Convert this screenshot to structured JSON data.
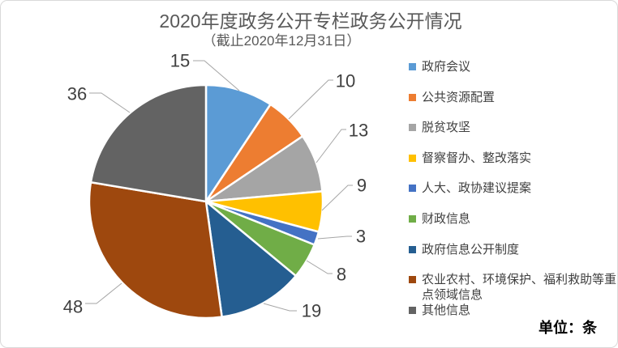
{
  "title": "2020年度政务公开专栏政务公开情况",
  "subtitle": "（截止2020年12月31日）",
  "unit_label": "单位：条",
  "colors": {
    "title_text": "#595959",
    "value_label_text": "#404040",
    "legend_text": "#404040",
    "leader_line": "#A6A6A6",
    "frame_border": "#D9D9D9",
    "background": "#FFFFFF"
  },
  "chart_data": {
    "type": "pie",
    "title": "2020年度政务公开专栏政务公开情况",
    "subtitle": "（截止2020年12月31日）",
    "unit": "条",
    "total": 161,
    "start_angle_deg": 0,
    "direction": "clockwise",
    "legend_position": "right",
    "slice_gap": "white 2.5px borders between slices",
    "slices": [
      {
        "label": "政府会议",
        "value": 15,
        "color": "#5B9BD5"
      },
      {
        "label": "公共资源配置",
        "value": 10,
        "color": "#ED7D31"
      },
      {
        "label": "脱贫攻坚",
        "value": 13,
        "color": "#A5A5A5"
      },
      {
        "label": "督察督办、整改落实",
        "value": 9,
        "color": "#FFC000"
      },
      {
        "label": "人大、政协建议提案",
        "value": 3,
        "color": "#4472C4"
      },
      {
        "label": "财政信息",
        "value": 8,
        "color": "#70AD47"
      },
      {
        "label": "政府信息公开制度",
        "value": 19,
        "color": "#255E91"
      },
      {
        "label": "农业农村、环境保护、福利救助等重点领域信息",
        "value": 48,
        "color": "#9E480E"
      },
      {
        "label": "其他信息",
        "value": 36,
        "color": "#636363"
      }
    ]
  }
}
